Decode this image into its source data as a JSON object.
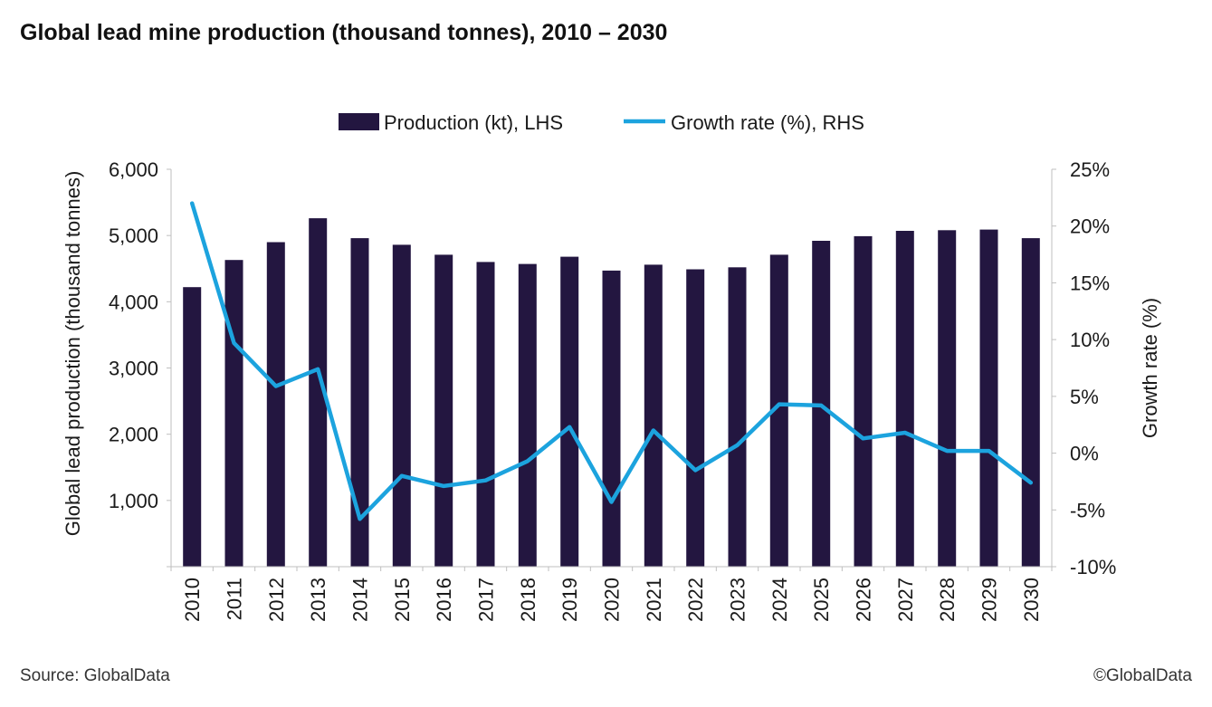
{
  "header": {
    "title": "Global lead mine production (thousand tonnes), 2010 – 2030"
  },
  "footer": {
    "source": "Source: GlobalData",
    "copyright": "©GlobalData"
  },
  "colors": {
    "bar": "#231640",
    "line": "#1ca3de",
    "axis": "#bfbfbf"
  },
  "chart_data": {
    "type": "bar",
    "categories": [
      "2010",
      "2011",
      "2012",
      "2013",
      "2014",
      "2015",
      "2016",
      "2017",
      "2018",
      "2019",
      "2020",
      "2021",
      "2022",
      "2023",
      "2024",
      "2025",
      "2026",
      "2027",
      "2028",
      "2029",
      "2030"
    ],
    "series": [
      {
        "name": "Production (kt), LHS",
        "type": "bar",
        "axis": "left",
        "values": [
          4220,
          4630,
          4900,
          5260,
          4960,
          4860,
          4710,
          4600,
          4570,
          4680,
          4470,
          4560,
          4490,
          4520,
          4710,
          4920,
          4990,
          5070,
          5080,
          5090,
          4960
        ]
      },
      {
        "name": "Growth rate (%), RHS",
        "type": "line",
        "axis": "right",
        "values": [
          22.0,
          9.7,
          5.9,
          7.4,
          -5.8,
          -2.0,
          -2.9,
          -2.4,
          -0.7,
          2.3,
          -4.3,
          2.0,
          -1.5,
          0.7,
          4.3,
          4.2,
          1.3,
          1.8,
          0.2,
          0.2,
          -2.6
        ]
      }
    ],
    "ylabel": "Global lead production (thousand tonnes)",
    "ylabel_right": "Growth rate (%)",
    "ylim": [
      0,
      6000
    ],
    "ylim_right": [
      -10,
      25
    ],
    "yticks": [
      1000,
      2000,
      3000,
      4000,
      5000,
      6000
    ],
    "yticks_labels": [
      "1,000",
      "2,000",
      "3,000",
      "4,000",
      "5,000",
      "6,000"
    ],
    "yticks_right": [
      -10,
      -5,
      0,
      5,
      10,
      15,
      20,
      25
    ],
    "yticks_right_labels": [
      "-10%",
      "-5%",
      "0%",
      "5%",
      "10%",
      "15%",
      "20%",
      "25%"
    ],
    "legend_position": "top-center",
    "grid": false
  }
}
